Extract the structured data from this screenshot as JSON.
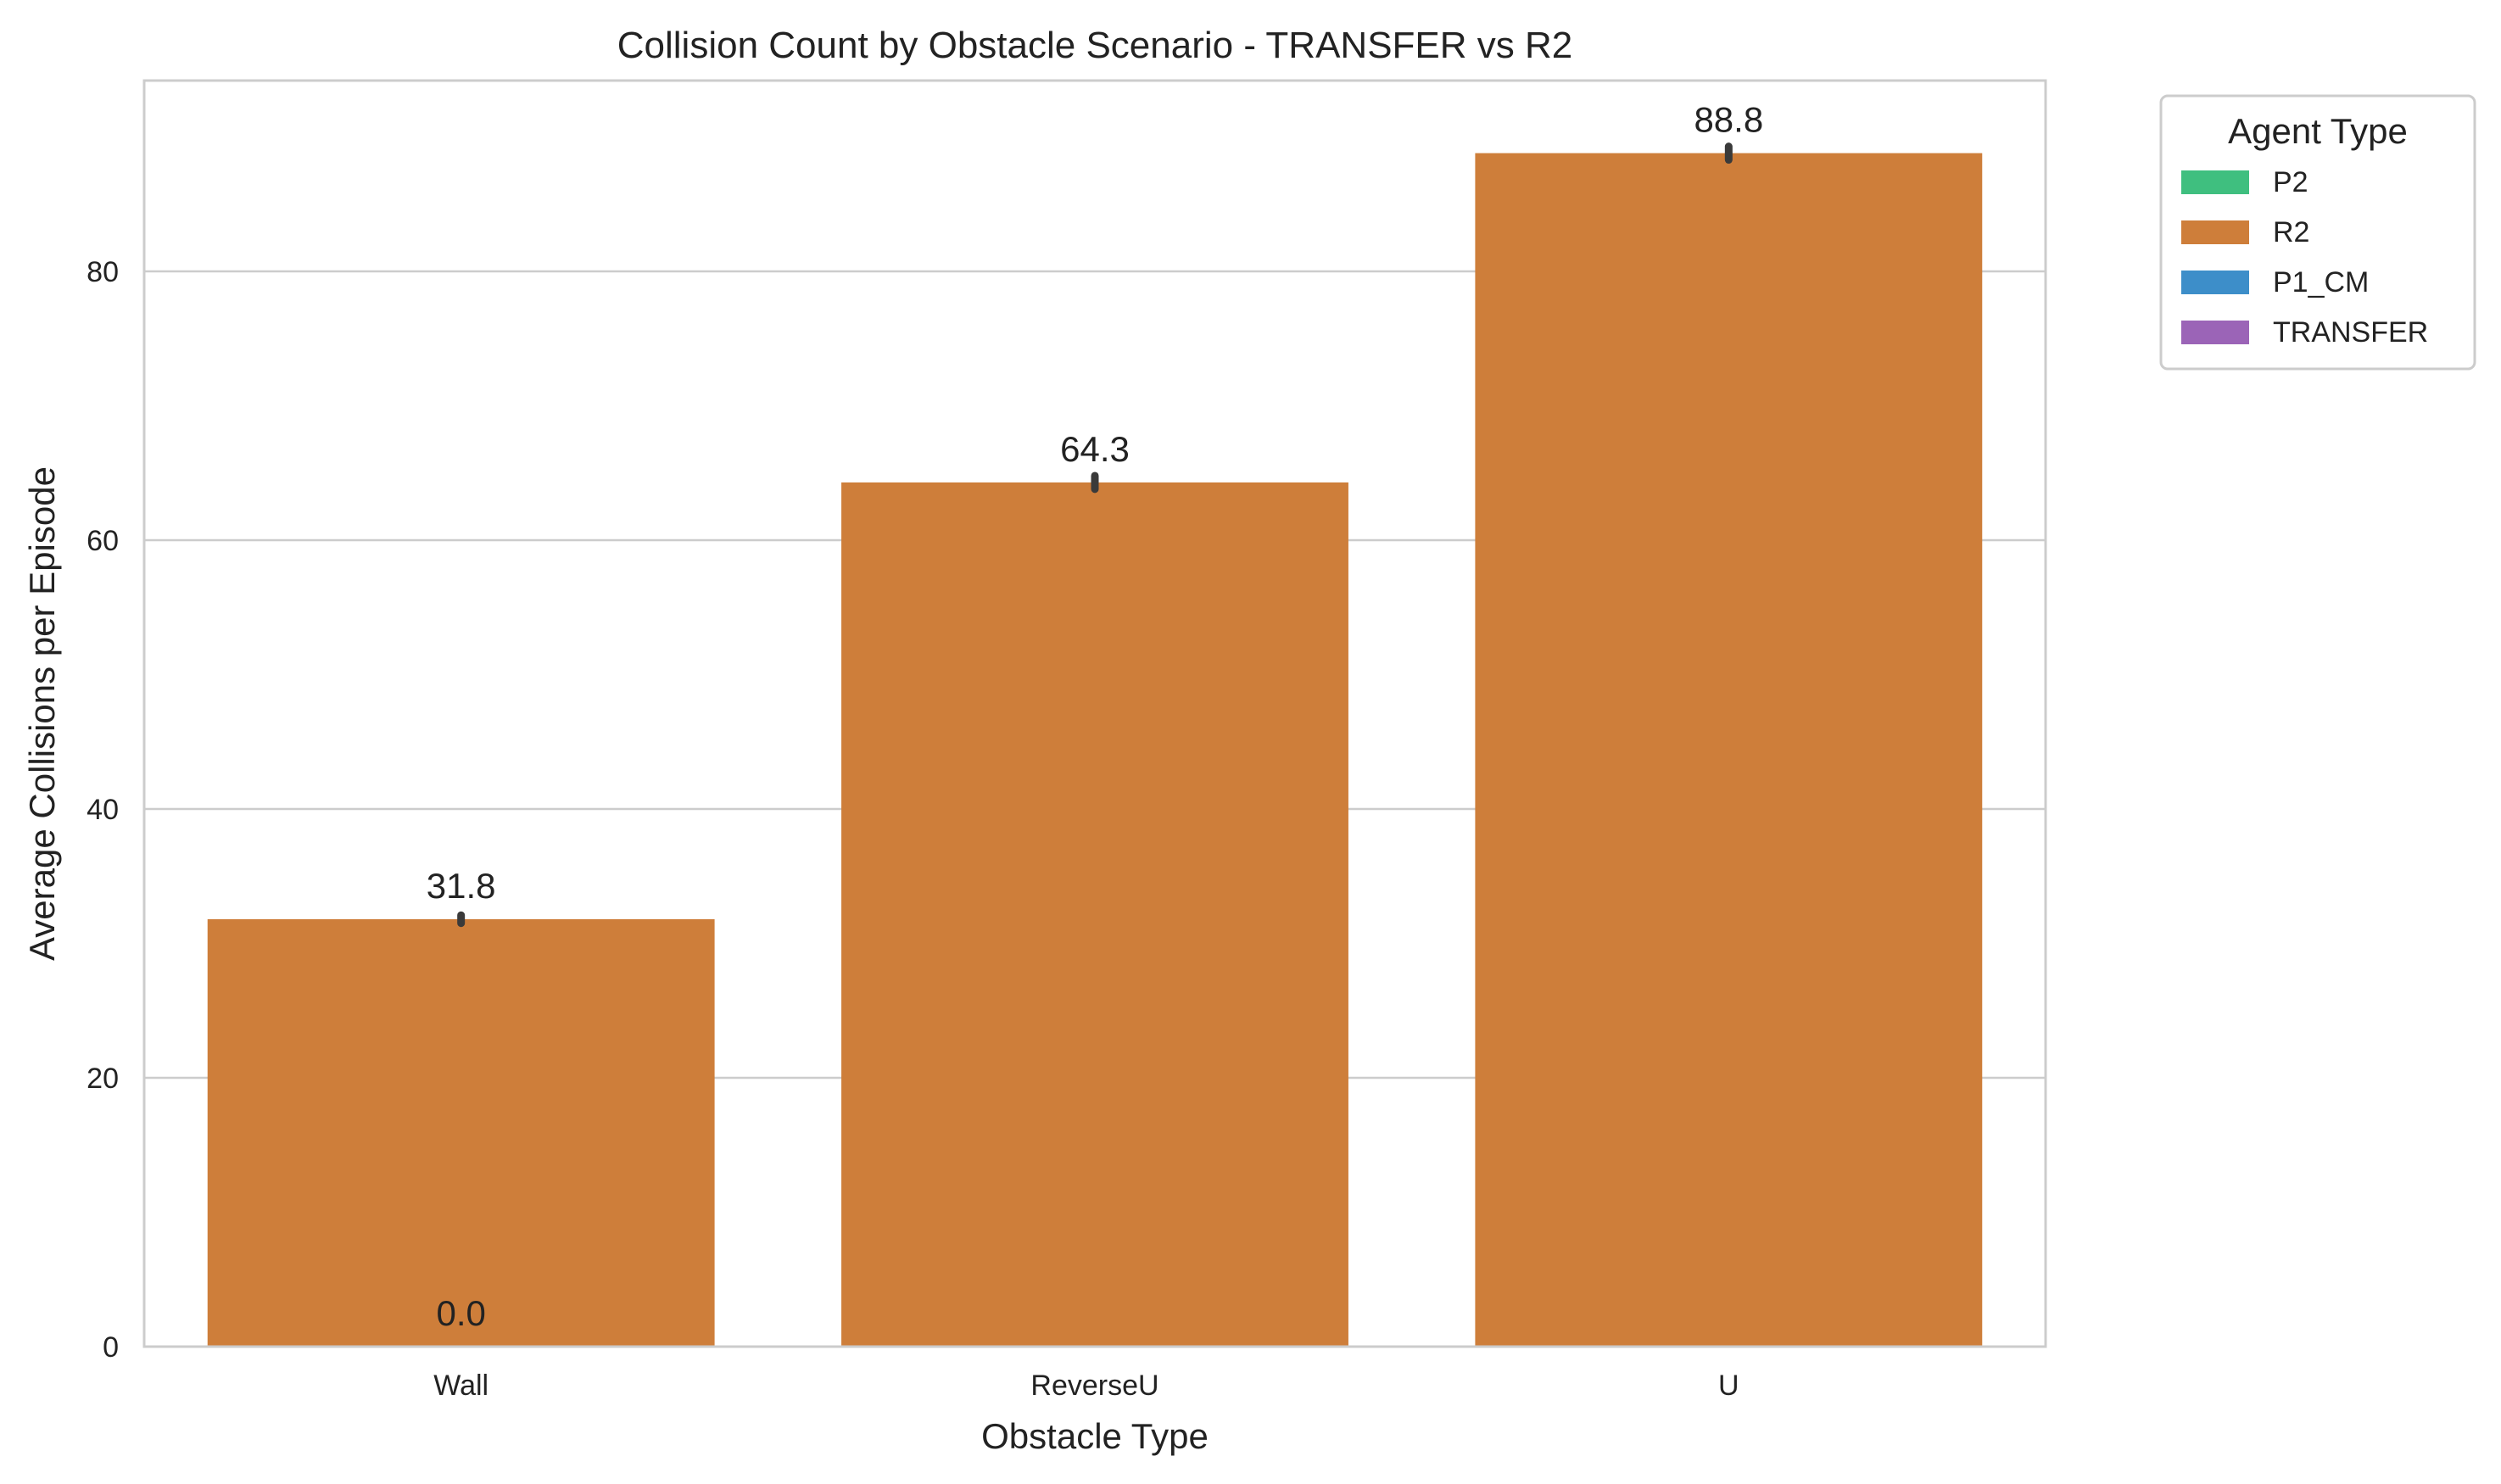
{
  "chart_data": {
    "type": "bar",
    "title": "Collision Count by Obstacle Scenario - TRANSFER vs R2",
    "xlabel": "Obstacle Type",
    "ylabel": "Average Collisions per Episode",
    "categories": [
      "Wall",
      "ReverseU",
      "U"
    ],
    "ylim": [
      0,
      94.2
    ],
    "yticks": [
      0,
      20,
      40,
      60,
      80
    ],
    "grid": "horizontal",
    "legend": {
      "title": "Agent Type",
      "placement": "outside-top-right",
      "entries": [
        {
          "name": "P2",
          "color": "#3fbf7f"
        },
        {
          "name": "R2",
          "color": "#ce7e3a"
        },
        {
          "name": "P1_CM",
          "color": "#3d8ec9"
        },
        {
          "name": "TRANSFER",
          "color": "#9b64b7"
        }
      ]
    },
    "series": [
      {
        "name": "R2",
        "color": "#ce7e3a",
        "values": [
          31.8,
          64.3,
          88.8
        ],
        "error": [
          [
            31.5,
            32.1
          ],
          [
            63.8,
            64.8
          ],
          [
            88.3,
            89.3
          ]
        ],
        "labels": [
          "31.8",
          "64.3",
          "88.8"
        ]
      },
      {
        "name": "TRANSFER",
        "color": "#9b64b7",
        "values": [
          0.0,
          null,
          null
        ],
        "labels": [
          "0.0",
          null,
          null
        ]
      }
    ]
  }
}
